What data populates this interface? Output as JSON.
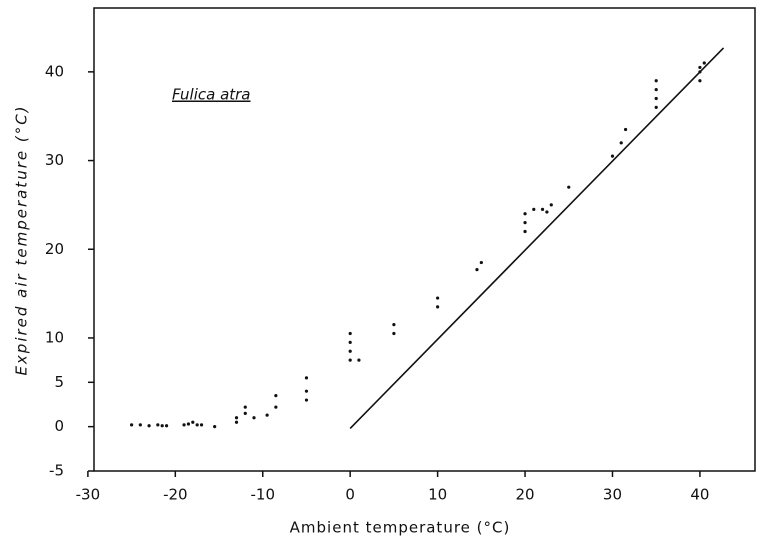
{
  "chart_data": {
    "type": "scatter",
    "annotation": "Fulica atra",
    "xlabel": "Ambient temperature (°C)",
    "ylabel": "Expired air temperature (°C)",
    "xlim": [
      -29.3,
      46.3
    ],
    "ylim": [
      -5,
      47.2
    ],
    "xticks": [
      -30,
      -20,
      -10,
      0,
      10,
      20,
      30,
      40
    ],
    "yticks": [
      -5,
      0,
      5,
      10,
      20,
      30,
      40
    ],
    "grid": false,
    "series": [
      {
        "type": "scatter",
        "color": "#111111",
        "x": [
          -25,
          -24,
          -23,
          -22,
          -21.5,
          -21,
          -19,
          -18.5,
          -18,
          -17.5,
          -17,
          -15.5,
          -13,
          -13,
          -12,
          -12,
          -11,
          -9.5,
          -8.5,
          -8.5,
          -5,
          -5,
          -5,
          0,
          0,
          0,
          0,
          1,
          5,
          5,
          10,
          10,
          14.5,
          15,
          20,
          20,
          20,
          21,
          22,
          22.5,
          23,
          25,
          30,
          31,
          31.5,
          35,
          35,
          35,
          35,
          40,
          40,
          40,
          40.5
        ],
        "values": [
          0.2,
          0.2,
          0.1,
          0.2,
          0.1,
          0.1,
          0.2,
          0.3,
          0.5,
          0.2,
          0.2,
          0,
          0.5,
          1,
          1.5,
          2.2,
          1,
          1.3,
          2.2,
          3.5,
          3,
          4,
          5.5,
          7.5,
          8.5,
          9.5,
          10.5,
          7.5,
          10.5,
          11.5,
          13.5,
          14.5,
          17.7,
          18.5,
          22,
          23,
          24,
          24.5,
          24.5,
          24.2,
          25,
          27,
          30.5,
          32,
          33.5,
          36,
          37,
          38,
          39,
          39,
          40,
          40.5,
          41
        ]
      },
      {
        "type": "line",
        "color": "#111111",
        "x": [
          0,
          42.7
        ],
        "values": [
          -0.2,
          42.7
        ]
      }
    ]
  }
}
